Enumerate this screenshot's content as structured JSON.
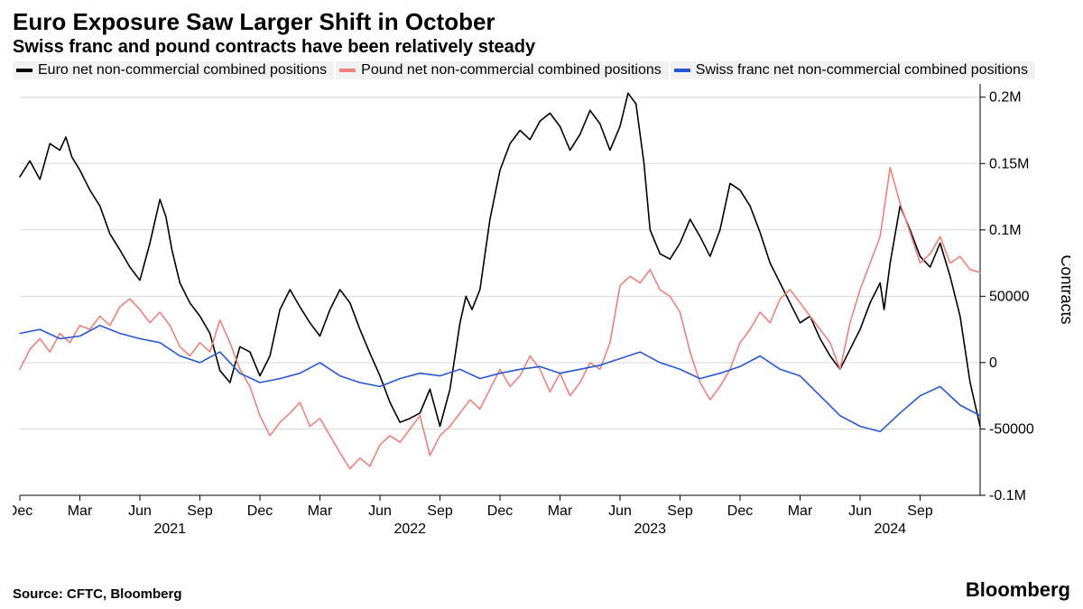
{
  "title": "Euro Exposure Saw Larger Shift in October",
  "subtitle": "Swiss franc and pound contracts have been relatively steady",
  "source_label": "Source: CFTC, Bloomberg",
  "brand": "Bloomberg",
  "chart": {
    "type": "line",
    "background_color": "#ffffff",
    "grid_color": "#d9d9d9",
    "axis_color": "#000000",
    "line_width": 1.6,
    "y_axis": {
      "title": "Contracts",
      "side": "right",
      "ylim": [
        -100000,
        210000
      ],
      "ticks": [
        {
          "v": -100000,
          "label": "-0.1M"
        },
        {
          "v": -50000,
          "label": "-50000"
        },
        {
          "v": 0,
          "label": "0"
        },
        {
          "v": 50000,
          "label": "50000"
        },
        {
          "v": 100000,
          "label": "0.1M"
        },
        {
          "v": 150000,
          "label": "0.15M"
        },
        {
          "v": 200000,
          "label": "0.2M"
        }
      ]
    },
    "x_axis": {
      "xlim": [
        0,
        48
      ],
      "month_ticks": [
        {
          "x": 0,
          "label": "Dec"
        },
        {
          "x": 3,
          "label": "Mar"
        },
        {
          "x": 6,
          "label": "Jun"
        },
        {
          "x": 9,
          "label": "Sep"
        },
        {
          "x": 12,
          "label": "Dec"
        },
        {
          "x": 15,
          "label": "Mar"
        },
        {
          "x": 18,
          "label": "Jun"
        },
        {
          "x": 21,
          "label": "Sep"
        },
        {
          "x": 24,
          "label": "Dec"
        },
        {
          "x": 27,
          "label": "Mar"
        },
        {
          "x": 30,
          "label": "Jun"
        },
        {
          "x": 33,
          "label": "Sep"
        },
        {
          "x": 36,
          "label": "Dec"
        },
        {
          "x": 39,
          "label": "Mar"
        },
        {
          "x": 42,
          "label": "Jun"
        },
        {
          "x": 45,
          "label": "Sep"
        }
      ],
      "year_ticks": [
        {
          "x": 7.5,
          "label": "2021"
        },
        {
          "x": 19.5,
          "label": "2022"
        },
        {
          "x": 31.5,
          "label": "2023"
        },
        {
          "x": 43.5,
          "label": "2024"
        }
      ]
    },
    "series": [
      {
        "name": "Euro net non-commercial combined positions",
        "color": "#000000",
        "data": [
          [
            0,
            140000
          ],
          [
            0.5,
            152000
          ],
          [
            1,
            138000
          ],
          [
            1.5,
            165000
          ],
          [
            2,
            160000
          ],
          [
            2.3,
            170000
          ],
          [
            2.6,
            155000
          ],
          [
            3,
            145000
          ],
          [
            3.5,
            130000
          ],
          [
            4,
            118000
          ],
          [
            4.5,
            97000
          ],
          [
            5,
            85000
          ],
          [
            5.5,
            72000
          ],
          [
            6,
            62000
          ],
          [
            6.5,
            90000
          ],
          [
            7,
            123000
          ],
          [
            7.3,
            110000
          ],
          [
            7.6,
            85000
          ],
          [
            8,
            60000
          ],
          [
            8.5,
            45000
          ],
          [
            9,
            35000
          ],
          [
            9.5,
            22000
          ],
          [
            10,
            -6000
          ],
          [
            10.5,
            -15000
          ],
          [
            11,
            12000
          ],
          [
            11.5,
            8000
          ],
          [
            12,
            -10000
          ],
          [
            12.5,
            5000
          ],
          [
            13,
            40000
          ],
          [
            13.5,
            55000
          ],
          [
            14,
            42000
          ],
          [
            14.5,
            30000
          ],
          [
            15,
            20000
          ],
          [
            15.5,
            40000
          ],
          [
            16,
            55000
          ],
          [
            16.5,
            45000
          ],
          [
            17,
            25000
          ],
          [
            17.5,
            7000
          ],
          [
            18,
            -10000
          ],
          [
            18.5,
            -30000
          ],
          [
            19,
            -45000
          ],
          [
            19.5,
            -42000
          ],
          [
            20,
            -38000
          ],
          [
            20.5,
            -20000
          ],
          [
            21,
            -48000
          ],
          [
            21.5,
            -20000
          ],
          [
            22,
            30000
          ],
          [
            22.3,
            50000
          ],
          [
            22.6,
            40000
          ],
          [
            23,
            55000
          ],
          [
            23.5,
            108000
          ],
          [
            24,
            145000
          ],
          [
            24.5,
            165000
          ],
          [
            25,
            175000
          ],
          [
            25.5,
            168000
          ],
          [
            26,
            182000
          ],
          [
            26.5,
            188000
          ],
          [
            27,
            178000
          ],
          [
            27.5,
            160000
          ],
          [
            28,
            172000
          ],
          [
            28.5,
            190000
          ],
          [
            29,
            180000
          ],
          [
            29.5,
            160000
          ],
          [
            30,
            178000
          ],
          [
            30.4,
            203000
          ],
          [
            30.8,
            195000
          ],
          [
            31.2,
            150000
          ],
          [
            31.5,
            100000
          ],
          [
            32,
            82000
          ],
          [
            32.5,
            78000
          ],
          [
            33,
            90000
          ],
          [
            33.5,
            108000
          ],
          [
            34,
            95000
          ],
          [
            34.5,
            80000
          ],
          [
            35,
            100000
          ],
          [
            35.5,
            135000
          ],
          [
            36,
            130000
          ],
          [
            36.5,
            118000
          ],
          [
            37,
            98000
          ],
          [
            37.5,
            75000
          ],
          [
            38,
            60000
          ],
          [
            38.5,
            45000
          ],
          [
            39,
            30000
          ],
          [
            39.5,
            35000
          ],
          [
            40,
            18000
          ],
          [
            40.5,
            5000
          ],
          [
            41,
            -5000
          ],
          [
            41.5,
            10000
          ],
          [
            42,
            25000
          ],
          [
            42.5,
            45000
          ],
          [
            43,
            60000
          ],
          [
            43.2,
            40000
          ],
          [
            43.5,
            75000
          ],
          [
            44,
            118000
          ],
          [
            44.5,
            100000
          ],
          [
            45,
            80000
          ],
          [
            45.5,
            72000
          ],
          [
            46,
            90000
          ],
          [
            46.5,
            65000
          ],
          [
            47,
            35000
          ],
          [
            47.5,
            -15000
          ],
          [
            48,
            -48000
          ]
        ]
      },
      {
        "name": "Pound net non-commercial combined positions",
        "color": "#f0807a",
        "data": [
          [
            0,
            -5000
          ],
          [
            0.5,
            10000
          ],
          [
            1,
            18000
          ],
          [
            1.5,
            8000
          ],
          [
            2,
            22000
          ],
          [
            2.5,
            15000
          ],
          [
            3,
            28000
          ],
          [
            3.5,
            25000
          ],
          [
            4,
            35000
          ],
          [
            4.5,
            28000
          ],
          [
            5,
            42000
          ],
          [
            5.5,
            48000
          ],
          [
            6,
            40000
          ],
          [
            6.5,
            30000
          ],
          [
            7,
            38000
          ],
          [
            7.5,
            28000
          ],
          [
            8,
            12000
          ],
          [
            8.5,
            5000
          ],
          [
            9,
            15000
          ],
          [
            9.5,
            8000
          ],
          [
            10,
            32000
          ],
          [
            10.5,
            15000
          ],
          [
            11,
            -5000
          ],
          [
            11.5,
            -18000
          ],
          [
            12,
            -40000
          ],
          [
            12.5,
            -55000
          ],
          [
            13,
            -45000
          ],
          [
            13.5,
            -38000
          ],
          [
            14,
            -30000
          ],
          [
            14.5,
            -48000
          ],
          [
            15,
            -42000
          ],
          [
            15.5,
            -55000
          ],
          [
            16,
            -68000
          ],
          [
            16.5,
            -80000
          ],
          [
            17,
            -72000
          ],
          [
            17.5,
            -78000
          ],
          [
            18,
            -62000
          ],
          [
            18.5,
            -55000
          ],
          [
            19,
            -60000
          ],
          [
            19.5,
            -50000
          ],
          [
            20,
            -40000
          ],
          [
            20.5,
            -70000
          ],
          [
            21,
            -55000
          ],
          [
            21.5,
            -48000
          ],
          [
            22,
            -38000
          ],
          [
            22.5,
            -28000
          ],
          [
            23,
            -35000
          ],
          [
            23.5,
            -20000
          ],
          [
            24,
            -5000
          ],
          [
            24.5,
            -18000
          ],
          [
            25,
            -10000
          ],
          [
            25.5,
            5000
          ],
          [
            26,
            -5000
          ],
          [
            26.5,
            -22000
          ],
          [
            27,
            -8000
          ],
          [
            27.5,
            -25000
          ],
          [
            28,
            -15000
          ],
          [
            28.5,
            0
          ],
          [
            29,
            -5000
          ],
          [
            29.5,
            15000
          ],
          [
            30,
            58000
          ],
          [
            30.5,
            65000
          ],
          [
            31,
            60000
          ],
          [
            31.5,
            70000
          ],
          [
            32,
            55000
          ],
          [
            32.5,
            50000
          ],
          [
            33,
            38000
          ],
          [
            33.5,
            8000
          ],
          [
            34,
            -15000
          ],
          [
            34.5,
            -28000
          ],
          [
            35,
            -18000
          ],
          [
            35.5,
            -5000
          ],
          [
            36,
            15000
          ],
          [
            36.5,
            25000
          ],
          [
            37,
            38000
          ],
          [
            37.5,
            30000
          ],
          [
            38,
            48000
          ],
          [
            38.5,
            55000
          ],
          [
            39,
            45000
          ],
          [
            39.5,
            35000
          ],
          [
            40,
            25000
          ],
          [
            40.5,
            15000
          ],
          [
            41,
            -5000
          ],
          [
            41.5,
            30000
          ],
          [
            42,
            55000
          ],
          [
            42.5,
            75000
          ],
          [
            43,
            95000
          ],
          [
            43.5,
            147000
          ],
          [
            44,
            120000
          ],
          [
            44.5,
            98000
          ],
          [
            45,
            75000
          ],
          [
            45.5,
            82000
          ],
          [
            46,
            95000
          ],
          [
            46.5,
            75000
          ],
          [
            47,
            80000
          ],
          [
            47.5,
            70000
          ],
          [
            48,
            68000
          ]
        ]
      },
      {
        "name": "Swiss franc net non-commercial combined positions",
        "color": "#2558d6",
        "data": [
          [
            0,
            22000
          ],
          [
            1,
            25000
          ],
          [
            2,
            18000
          ],
          [
            3,
            20000
          ],
          [
            4,
            28000
          ],
          [
            5,
            22000
          ],
          [
            6,
            18000
          ],
          [
            7,
            15000
          ],
          [
            8,
            5000
          ],
          [
            9,
            0
          ],
          [
            10,
            8000
          ],
          [
            11,
            -8000
          ],
          [
            12,
            -15000
          ],
          [
            13,
            -12000
          ],
          [
            14,
            -8000
          ],
          [
            15,
            0
          ],
          [
            16,
            -10000
          ],
          [
            17,
            -15000
          ],
          [
            18,
            -18000
          ],
          [
            19,
            -12000
          ],
          [
            20,
            -8000
          ],
          [
            21,
            -10000
          ],
          [
            22,
            -5000
          ],
          [
            23,
            -12000
          ],
          [
            24,
            -8000
          ],
          [
            25,
            -5000
          ],
          [
            26,
            -3000
          ],
          [
            27,
            -8000
          ],
          [
            28,
            -5000
          ],
          [
            29,
            -2000
          ],
          [
            30,
            3000
          ],
          [
            31,
            8000
          ],
          [
            32,
            0
          ],
          [
            33,
            -5000
          ],
          [
            34,
            -12000
          ],
          [
            35,
            -8000
          ],
          [
            36,
            -3000
          ],
          [
            37,
            5000
          ],
          [
            38,
            -5000
          ],
          [
            39,
            -10000
          ],
          [
            40,
            -25000
          ],
          [
            41,
            -40000
          ],
          [
            42,
            -48000
          ],
          [
            43,
            -52000
          ],
          [
            44,
            -38000
          ],
          [
            45,
            -25000
          ],
          [
            46,
            -18000
          ],
          [
            47,
            -32000
          ],
          [
            48,
            -40000
          ]
        ]
      }
    ],
    "legend_background": "#f2f2f2",
    "title_fontsize": 26,
    "subtitle_fontsize": 20,
    "tick_fontsize": 16
  }
}
